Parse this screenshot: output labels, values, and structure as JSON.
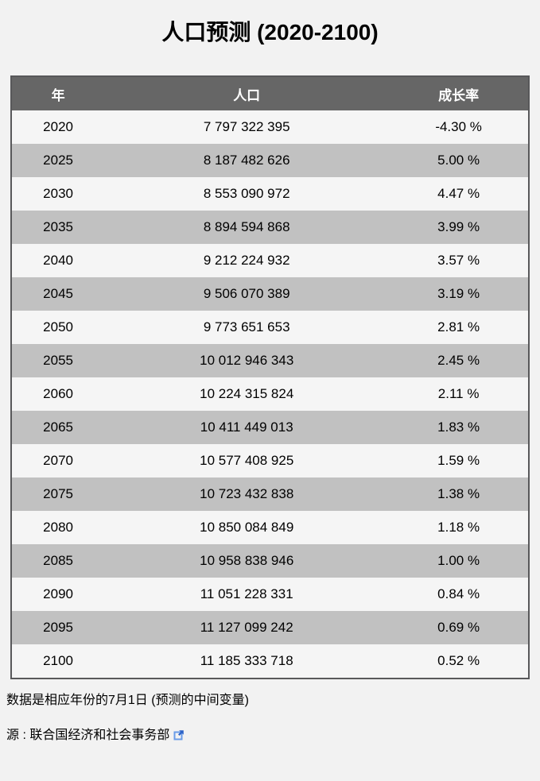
{
  "page": {
    "title": "人口预测 (2020-2100)",
    "footnote": "数据是相应年份的7月1日 (预测的中间变量)",
    "source_label": "源 : ",
    "source_link": "联合国经济和社会事务部"
  },
  "table": {
    "columns": [
      "年",
      "人口",
      "成长率"
    ],
    "rows": [
      [
        "2020",
        "7 797 322 395",
        "-4.30 %"
      ],
      [
        "2025",
        "8 187 482 626",
        "5.00 %"
      ],
      [
        "2030",
        "8 553 090 972",
        "4.47 %"
      ],
      [
        "2035",
        "8 894 594 868",
        "3.99 %"
      ],
      [
        "2040",
        "9 212 224 932",
        "3.57 %"
      ],
      [
        "2045",
        "9 506 070 389",
        "3.19 %"
      ],
      [
        "2050",
        "9 773 651 653",
        "2.81 %"
      ],
      [
        "2055",
        "10 012 946 343",
        "2.45 %"
      ],
      [
        "2060",
        "10 224 315 824",
        "2.11 %"
      ],
      [
        "2065",
        "10 411 449 013",
        "1.83 %"
      ],
      [
        "2070",
        "10 577 408 925",
        "1.59 %"
      ],
      [
        "2075",
        "10 723 432 838",
        "1.38 %"
      ],
      [
        "2080",
        "10 850 084 849",
        "1.18 %"
      ],
      [
        "2085",
        "10 958 838 946",
        "1.00 %"
      ],
      [
        "2090",
        "11 051 228 331",
        "0.84 %"
      ],
      [
        "2095",
        "11 127 099 242",
        "0.69 %"
      ],
      [
        "2100",
        "11 185 333 718",
        "0.52 %"
      ]
    ]
  },
  "colors": {
    "page_background": "#f2f2f2",
    "header_background": "#666666",
    "header_text": "#ffffff",
    "row_light": "#f5f5f5",
    "row_dark": "#c1c1c1",
    "table_border": "#58585a",
    "external_link_icon_blue": "#3b6fd0"
  },
  "icons": {
    "external_link": "external-link-icon"
  },
  "chart_data": {
    "type": "table",
    "title": "人口预测 (2020-2100)",
    "columns": [
      "年",
      "人口",
      "成长率"
    ],
    "years": [
      2020,
      2025,
      2030,
      2035,
      2040,
      2045,
      2050,
      2055,
      2060,
      2065,
      2070,
      2075,
      2080,
      2085,
      2090,
      2095,
      2100
    ],
    "population": [
      7797322395,
      8187482626,
      8553090972,
      8894594868,
      9212224932,
      9506070389,
      9773651653,
      10012946343,
      10224315824,
      10411449013,
      10577408925,
      10723432838,
      10850084849,
      10958838946,
      11051228331,
      11127099242,
      11185333718
    ],
    "growth_rate_percent": [
      -4.3,
      5.0,
      4.47,
      3.99,
      3.57,
      3.19,
      2.81,
      2.45,
      2.11,
      1.83,
      1.59,
      1.38,
      1.18,
      1.0,
      0.84,
      0.69,
      0.52
    ]
  }
}
